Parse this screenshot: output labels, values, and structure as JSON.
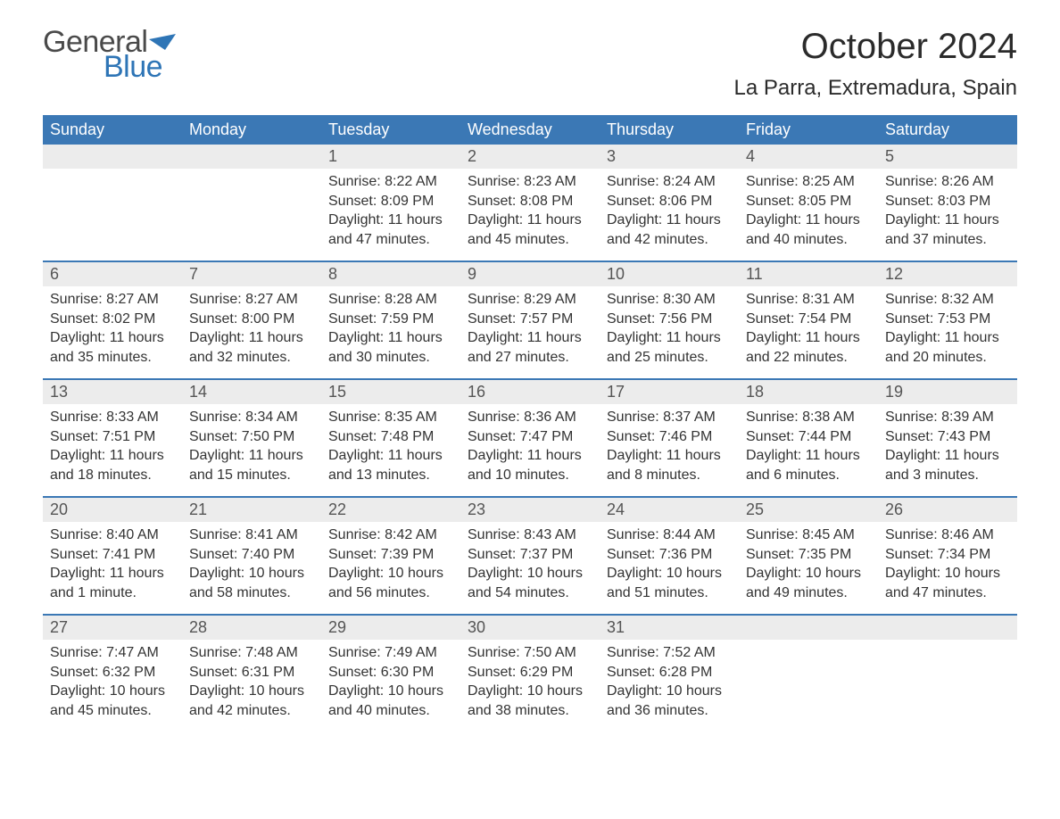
{
  "logo": {
    "text1": "General",
    "text2": "Blue",
    "brand_color": "#2e75b6",
    "text_color": "#4a4a4a"
  },
  "title": "October 2024",
  "location": "La Parra, Extremadura, Spain",
  "colors": {
    "header_bg": "#3b78b5",
    "header_text": "#ffffff",
    "daynum_bg": "#ececec",
    "daynum_text": "#555555",
    "body_text": "#333333",
    "rule": "#3b78b5",
    "page_bg": "#ffffff"
  },
  "days_of_week": [
    "Sunday",
    "Monday",
    "Tuesday",
    "Wednesday",
    "Thursday",
    "Friday",
    "Saturday"
  ],
  "weeks": [
    [
      {
        "n": null
      },
      {
        "n": null
      },
      {
        "n": "1",
        "sunrise": "8:22 AM",
        "sunset": "8:09 PM",
        "daylight": "11 hours and 47 minutes."
      },
      {
        "n": "2",
        "sunrise": "8:23 AM",
        "sunset": "8:08 PM",
        "daylight": "11 hours and 45 minutes."
      },
      {
        "n": "3",
        "sunrise": "8:24 AM",
        "sunset": "8:06 PM",
        "daylight": "11 hours and 42 minutes."
      },
      {
        "n": "4",
        "sunrise": "8:25 AM",
        "sunset": "8:05 PM",
        "daylight": "11 hours and 40 minutes."
      },
      {
        "n": "5",
        "sunrise": "8:26 AM",
        "sunset": "8:03 PM",
        "daylight": "11 hours and 37 minutes."
      }
    ],
    [
      {
        "n": "6",
        "sunrise": "8:27 AM",
        "sunset": "8:02 PM",
        "daylight": "11 hours and 35 minutes."
      },
      {
        "n": "7",
        "sunrise": "8:27 AM",
        "sunset": "8:00 PM",
        "daylight": "11 hours and 32 minutes."
      },
      {
        "n": "8",
        "sunrise": "8:28 AM",
        "sunset": "7:59 PM",
        "daylight": "11 hours and 30 minutes."
      },
      {
        "n": "9",
        "sunrise": "8:29 AM",
        "sunset": "7:57 PM",
        "daylight": "11 hours and 27 minutes."
      },
      {
        "n": "10",
        "sunrise": "8:30 AM",
        "sunset": "7:56 PM",
        "daylight": "11 hours and 25 minutes."
      },
      {
        "n": "11",
        "sunrise": "8:31 AM",
        "sunset": "7:54 PM",
        "daylight": "11 hours and 22 minutes."
      },
      {
        "n": "12",
        "sunrise": "8:32 AM",
        "sunset": "7:53 PM",
        "daylight": "11 hours and 20 minutes."
      }
    ],
    [
      {
        "n": "13",
        "sunrise": "8:33 AM",
        "sunset": "7:51 PM",
        "daylight": "11 hours and 18 minutes."
      },
      {
        "n": "14",
        "sunrise": "8:34 AM",
        "sunset": "7:50 PM",
        "daylight": "11 hours and 15 minutes."
      },
      {
        "n": "15",
        "sunrise": "8:35 AM",
        "sunset": "7:48 PM",
        "daylight": "11 hours and 13 minutes."
      },
      {
        "n": "16",
        "sunrise": "8:36 AM",
        "sunset": "7:47 PM",
        "daylight": "11 hours and 10 minutes."
      },
      {
        "n": "17",
        "sunrise": "8:37 AM",
        "sunset": "7:46 PM",
        "daylight": "11 hours and 8 minutes."
      },
      {
        "n": "18",
        "sunrise": "8:38 AM",
        "sunset": "7:44 PM",
        "daylight": "11 hours and 6 minutes."
      },
      {
        "n": "19",
        "sunrise": "8:39 AM",
        "sunset": "7:43 PM",
        "daylight": "11 hours and 3 minutes."
      }
    ],
    [
      {
        "n": "20",
        "sunrise": "8:40 AM",
        "sunset": "7:41 PM",
        "daylight": "11 hours and 1 minute."
      },
      {
        "n": "21",
        "sunrise": "8:41 AM",
        "sunset": "7:40 PM",
        "daylight": "10 hours and 58 minutes."
      },
      {
        "n": "22",
        "sunrise": "8:42 AM",
        "sunset": "7:39 PM",
        "daylight": "10 hours and 56 minutes."
      },
      {
        "n": "23",
        "sunrise": "8:43 AM",
        "sunset": "7:37 PM",
        "daylight": "10 hours and 54 minutes."
      },
      {
        "n": "24",
        "sunrise": "8:44 AM",
        "sunset": "7:36 PM",
        "daylight": "10 hours and 51 minutes."
      },
      {
        "n": "25",
        "sunrise": "8:45 AM",
        "sunset": "7:35 PM",
        "daylight": "10 hours and 49 minutes."
      },
      {
        "n": "26",
        "sunrise": "8:46 AM",
        "sunset": "7:34 PM",
        "daylight": "10 hours and 47 minutes."
      }
    ],
    [
      {
        "n": "27",
        "sunrise": "7:47 AM",
        "sunset": "6:32 PM",
        "daylight": "10 hours and 45 minutes."
      },
      {
        "n": "28",
        "sunrise": "7:48 AM",
        "sunset": "6:31 PM",
        "daylight": "10 hours and 42 minutes."
      },
      {
        "n": "29",
        "sunrise": "7:49 AM",
        "sunset": "6:30 PM",
        "daylight": "10 hours and 40 minutes."
      },
      {
        "n": "30",
        "sunrise": "7:50 AM",
        "sunset": "6:29 PM",
        "daylight": "10 hours and 38 minutes."
      },
      {
        "n": "31",
        "sunrise": "7:52 AM",
        "sunset": "6:28 PM",
        "daylight": "10 hours and 36 minutes."
      },
      {
        "n": null
      },
      {
        "n": null
      }
    ]
  ],
  "labels": {
    "sunrise": "Sunrise: ",
    "sunset": "Sunset: ",
    "daylight": "Daylight: "
  }
}
